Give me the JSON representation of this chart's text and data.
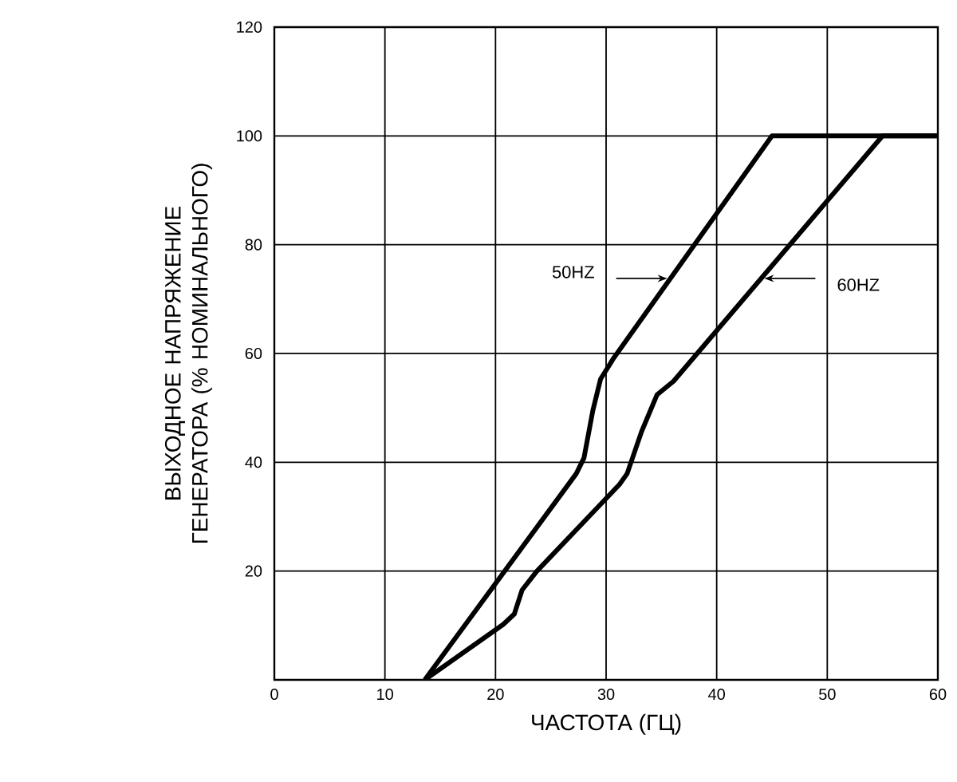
{
  "chart_data": {
    "type": "line",
    "xlabel": "ЧАСТОТА (ГЦ)",
    "ylabel": "ВЫХОДНОЕ НАПРЯЖЕНИЕ ГЕНЕРАТОРА (% НОМИНАЛЬНОГО)",
    "xlim": [
      0,
      60
    ],
    "xticks": [
      0,
      10,
      20,
      30,
      40,
      50,
      60
    ],
    "ylim": [
      0,
      120
    ],
    "yticks": [
      {
        "value": 0,
        "label": null
      },
      20,
      40,
      60,
      80,
      100,
      120
    ],
    "grid": true,
    "marker": "none",
    "line_style": "solid",
    "series": [
      {
        "color": "#000000",
        "x": [
          13.6,
          27.3,
          28.0,
          28.8,
          29.5,
          30.7,
          45,
          60
        ],
        "values": [
          0,
          37.9,
          40.8,
          49.5,
          55.3,
          59.2,
          100,
          100
        ]
      },
      {
        "color": "#000000",
        "x": [
          13.6,
          20.7,
          21.7,
          22.4,
          23.7,
          31.2,
          31.9,
          33.2,
          34.6,
          36.1,
          55,
          60
        ],
        "values": [
          0,
          10.2,
          12.1,
          16.5,
          19.9,
          35.9,
          37.9,
          45.6,
          52.4,
          54.9,
          100,
          100
        ]
      }
    ],
    "annotations": [
      "50HZ",
      "60HZ"
    ]
  }
}
